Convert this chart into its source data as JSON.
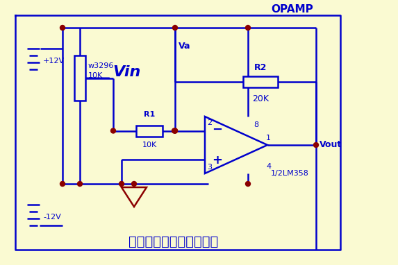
{
  "bg_color": "#FAFAD2",
  "cc": "#0000CC",
  "dc": "#8B0000",
  "title": "运算放大器反相放大组态",
  "opamp_label": "OPAMP",
  "opamp_name": "1/2LM358",
  "r1_label": "R1",
  "r1_val": "10K",
  "r2_label": "R2",
  "r2_val": "20K",
  "pot_label": "w3296",
  "pot_val": "10K",
  "v12p": "12V",
  "v12m": "12V",
  "vin_label": "Vin",
  "va_label": "Va",
  "vout_label": "Vout",
  "pin1": "1",
  "pin2": "2",
  "pin3": "3",
  "pin4": "4",
  "pin8": "8",
  "lw": 1.8,
  "dot_r": 3.5,
  "fig_w": 5.73,
  "fig_h": 3.82,
  "dpi": 100
}
